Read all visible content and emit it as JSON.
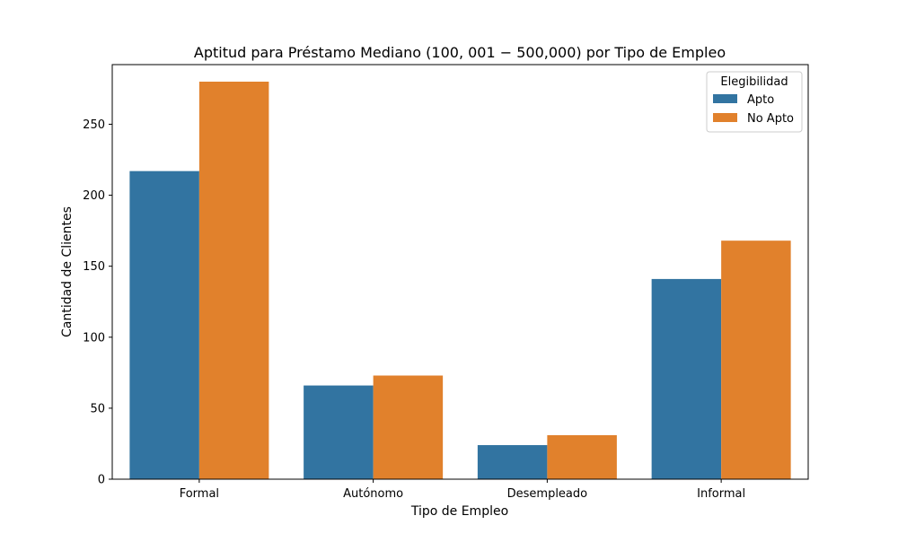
{
  "chart_data": {
    "type": "bar",
    "title": "Aptitud para Préstamo Mediano (100, 001 − 500,000) por Tipo de Empleo",
    "xlabel": "Tipo de Empleo",
    "ylabel": "Cantidad de Clientes",
    "categories": [
      "Formal",
      "Autónomo",
      "Desempleado",
      "Informal"
    ],
    "ylim": [
      0,
      292
    ],
    "yticks": [
      0,
      50,
      100,
      150,
      200,
      250
    ],
    "series": [
      {
        "name": "Apto",
        "color": "#3274a1",
        "values": [
          217,
          66,
          24,
          141
        ]
      },
      {
        "name": "No Apto",
        "color": "#e1812c",
        "values": [
          280,
          73,
          31,
          168
        ]
      }
    ],
    "legend": {
      "title": "Elegibilidad",
      "position": "top-right"
    },
    "grid": false
  }
}
